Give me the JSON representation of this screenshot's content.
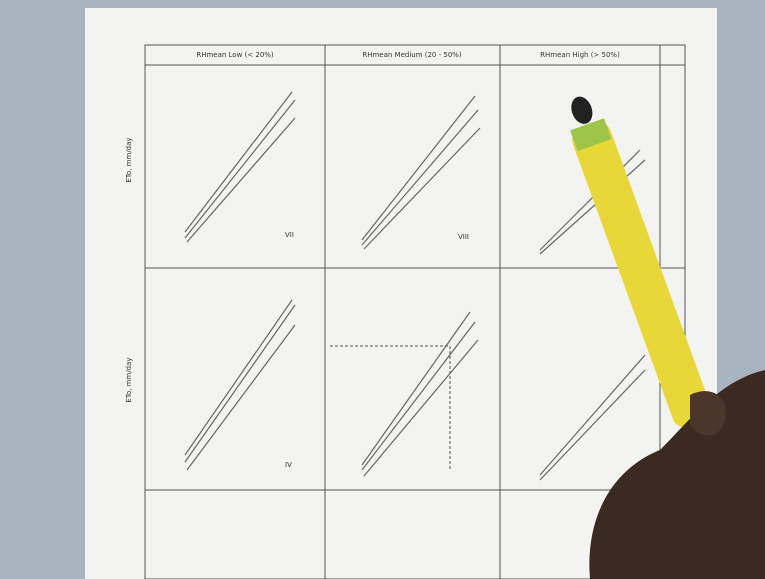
{
  "header": {
    "columns": [
      "RHmean Low (< 20%)",
      "RHmean Medium (20 - 50%)",
      "RHmean High (> 50%)"
    ]
  },
  "axis": {
    "y_label": "ETo, mm/day"
  },
  "panels": [
    {
      "label": "VII"
    },
    {
      "label": "VIII"
    },
    {
      "label": "IV"
    }
  ]
}
